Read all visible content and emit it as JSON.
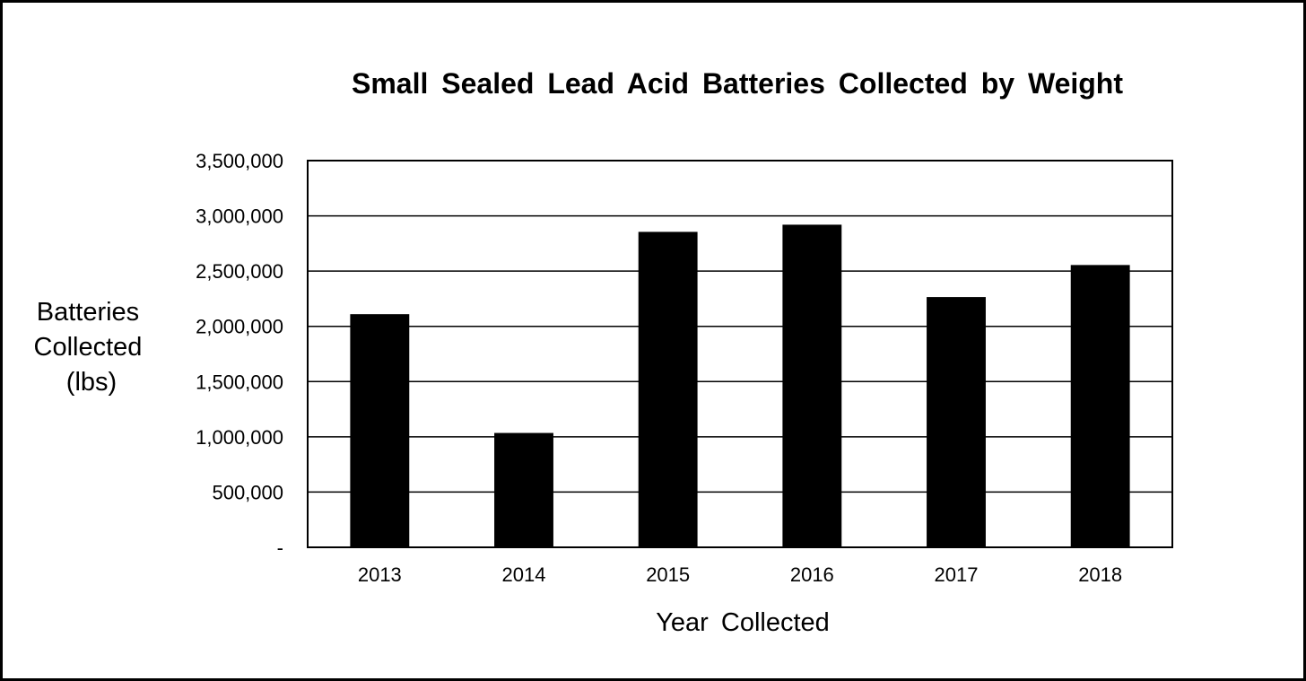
{
  "chart_data": {
    "type": "bar",
    "title": "Small Sealed Lead Acid Batteries Collected by Weight",
    "xlabel": "Year Collected",
    "ylabel_lines": [
      "Batteries",
      "Collected",
      "(lbs)"
    ],
    "categories": [
      "2013",
      "2014",
      "2015",
      "2016",
      "2017",
      "2018"
    ],
    "values": [
      2110000,
      1035000,
      2855000,
      2920000,
      2265000,
      2555000
    ],
    "ylim": [
      0,
      3500000
    ],
    "yticks": [
      0,
      500000,
      1000000,
      1500000,
      2000000,
      2500000,
      3000000,
      3500000
    ],
    "ytick_labels": [
      "-",
      "500,000",
      "1,000,000",
      "1,500,000",
      "2,000,000",
      "2,500,000",
      "3,000,000",
      "3,500,000"
    ],
    "grid": true,
    "bar_color": "#000000"
  }
}
